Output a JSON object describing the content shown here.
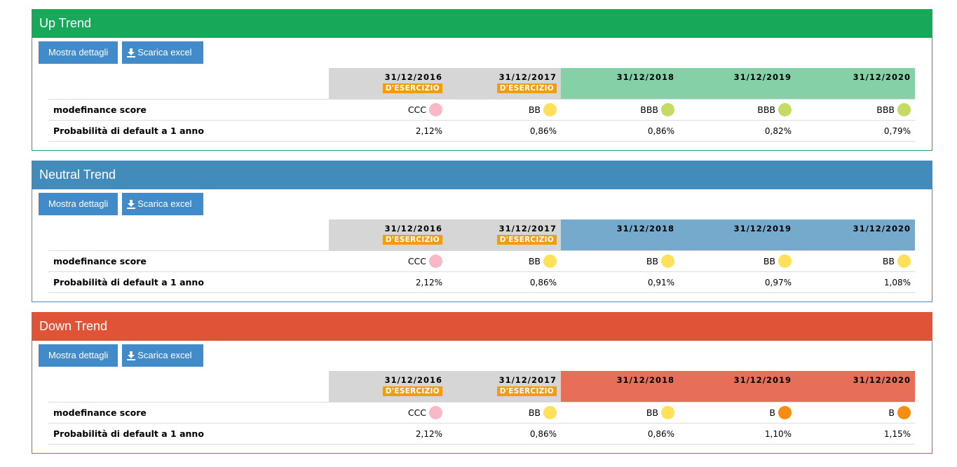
{
  "buttons": {
    "details_label": "Mostra dettagli",
    "excel_label": "Scarica excel"
  },
  "colors": {
    "rating": {
      "CCC": "#f8b8c8",
      "BB": "#fde15a",
      "BBB": "#c5dc64",
      "B": "#f68c10"
    },
    "badge": "#f39c12",
    "header_grey": "#d6d6d6"
  },
  "panels": [
    {
      "title": "Up Trend",
      "head_color": "#17a85a",
      "border_color": "#17a85a",
      "future_color": "#85d0a6",
      "dates": [
        {
          "date": "31/12/2016",
          "badge": "D'ESERCIZIO"
        },
        {
          "date": "31/12/2017",
          "badge": "D'ESERCIZIO"
        },
        {
          "date": "31/12/2018",
          "badge": ""
        },
        {
          "date": "31/12/2019",
          "badge": ""
        },
        {
          "date": "31/12/2020",
          "badge": ""
        }
      ],
      "score_label": "modefinance score",
      "scores": [
        "CCC",
        "BB",
        "BBB",
        "BBB",
        "BBB"
      ],
      "pd_label": "Probabilità di default a 1 anno",
      "pd": [
        "2,12%",
        "0,86%",
        "0,86%",
        "0,82%",
        "0,79%"
      ]
    },
    {
      "title": "Neutral Trend",
      "head_color": "#428bba",
      "border_color": "#428bba",
      "future_color": "#75aacc",
      "dates": [
        {
          "date": "31/12/2016",
          "badge": "D'ESERCIZIO"
        },
        {
          "date": "31/12/2017",
          "badge": "D'ESERCIZIO"
        },
        {
          "date": "31/12/2018",
          "badge": ""
        },
        {
          "date": "31/12/2019",
          "badge": ""
        },
        {
          "date": "31/12/2020",
          "badge": ""
        }
      ],
      "score_label": "modefinance score",
      "scores": [
        "CCC",
        "BB",
        "BB",
        "BB",
        "BB"
      ],
      "pd_label": "Probabilità di default a 1 anno",
      "pd": [
        "2,12%",
        "0,86%",
        "0,91%",
        "0,97%",
        "1,08%"
      ]
    },
    {
      "title": "Down Trend",
      "head_color": "#e05336",
      "border_color": "#e05336",
      "future_color": "#e76f58",
      "dates": [
        {
          "date": "31/12/2016",
          "badge": "D'ESERCIZIO"
        },
        {
          "date": "31/12/2017",
          "badge": "D'ESERCIZIO"
        },
        {
          "date": "31/12/2018",
          "badge": ""
        },
        {
          "date": "31/12/2019",
          "badge": ""
        },
        {
          "date": "31/12/2020",
          "badge": ""
        }
      ],
      "score_label": "modefinance score",
      "scores": [
        "CCC",
        "BB",
        "BB",
        "B",
        "B"
      ],
      "pd_label": "Probabilità di default a 1 anno",
      "pd": [
        "2,12%",
        "0,86%",
        "0,86%",
        "1,10%",
        "1,15%"
      ]
    }
  ]
}
